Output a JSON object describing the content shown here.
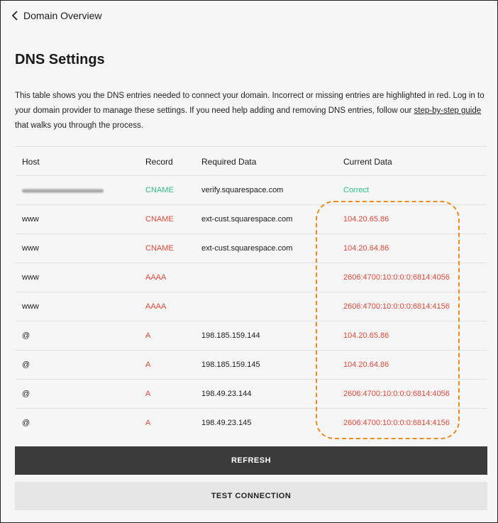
{
  "nav": {
    "back_label": "Domain Overview"
  },
  "page": {
    "title": "DNS Settings",
    "description": "This table shows you the DNS entries needed to connect your domain. Incorrect or missing entries are highlighted in red. Log in to your domain provider to manage these settings. If you need help adding and removing DNS entries, follow our ",
    "link_text": "step-by-step guide",
    "description_end": " that walks you through the process."
  },
  "table": {
    "headers": [
      "Host",
      "Record",
      "Required Data",
      "Current Data"
    ],
    "rows": [
      {
        "host": "",
        "record": "CNAME",
        "required": "verify.squarespace.com",
        "current": "Correct",
        "status": "ok"
      },
      {
        "host": "www",
        "record": "CNAME",
        "required": "ext-cust.squarespace.com",
        "current": "104.20.65.86",
        "status": "error"
      },
      {
        "host": "www",
        "record": "CNAME",
        "required": "ext-cust.squarespace.com",
        "current": "104.20.64.86",
        "status": "error"
      },
      {
        "host": "www",
        "record": "AAAA",
        "required": "",
        "current": "2606:4700:10:0:0:0:6814:4056",
        "status": "error"
      },
      {
        "host": "www",
        "record": "AAAA",
        "required": "",
        "current": "2606:4700:10:0:0:0:6814:4156",
        "status": "error"
      },
      {
        "host": "@",
        "record": "A",
        "required": "198.185.159.144",
        "current": "104.20.65.86",
        "status": "error"
      },
      {
        "host": "@",
        "record": "A",
        "required": "198.185.159.145",
        "current": "104.20.64.86",
        "status": "error"
      },
      {
        "host": "@",
        "record": "A",
        "required": "198.49.23.144",
        "current": "2606:4700:10:0:0:0:6814:4056",
        "status": "error"
      },
      {
        "host": "@",
        "record": "A",
        "required": "198.49.23.145",
        "current": "2606:4700:10:0:0:0:6814:4156",
        "status": "error"
      }
    ]
  },
  "buttons": {
    "refresh": "REFRESH",
    "test": "TEST CONNECTION"
  },
  "colors": {
    "error": "#e0483a",
    "ok": "#2fbf86",
    "highlight": "#f08a1c"
  }
}
